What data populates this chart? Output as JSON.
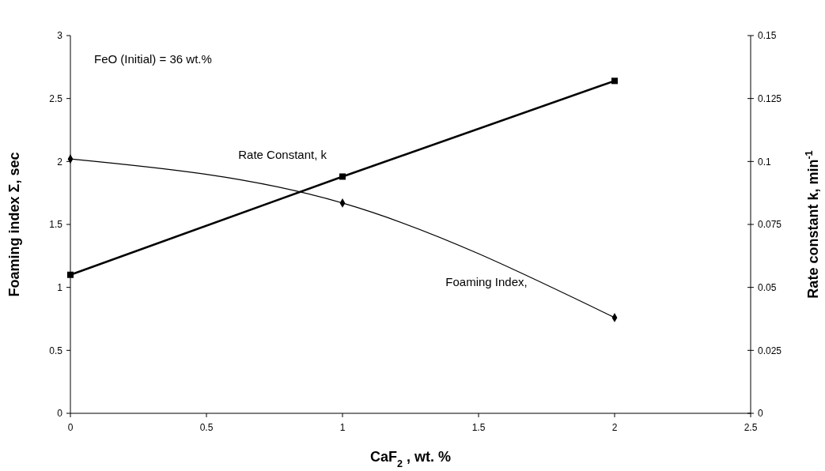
{
  "chart_data": {
    "type": "line",
    "xlabel": "CaF$_{2}$ , wt. %",
    "ylabel": "Foaming index Σ, sec",
    "y2label": "Rate constant k, min$^{-1}$",
    "x": [
      0,
      1,
      2
    ],
    "xlim": [
      0,
      2.5
    ],
    "xticks": [
      0,
      0.5,
      1,
      1.5,
      2,
      2.5
    ],
    "ylim": [
      0,
      3
    ],
    "yticks": [
      0,
      0.5,
      1,
      1.5,
      2,
      2.5,
      3
    ],
    "y2lim": [
      0,
      0.15
    ],
    "y2ticks": [
      0,
      0.025,
      0.05,
      0.075,
      0.1,
      0.125,
      0.15
    ],
    "grid": false,
    "annotations": [
      "FeO (Initial) = 36 wt.%"
    ],
    "series": [
      {
        "name": "Foaming Index,",
        "color": "#000000",
        "values": [
          2.02,
          1.67,
          0.76
        ],
        "marker": "diamond"
      },
      {
        "name": "Rate Constant, k",
        "color": "#000000",
        "values": [
          0.055,
          0.094,
          0.132
        ],
        "axis": "y2",
        "marker": "square"
      }
    ]
  }
}
